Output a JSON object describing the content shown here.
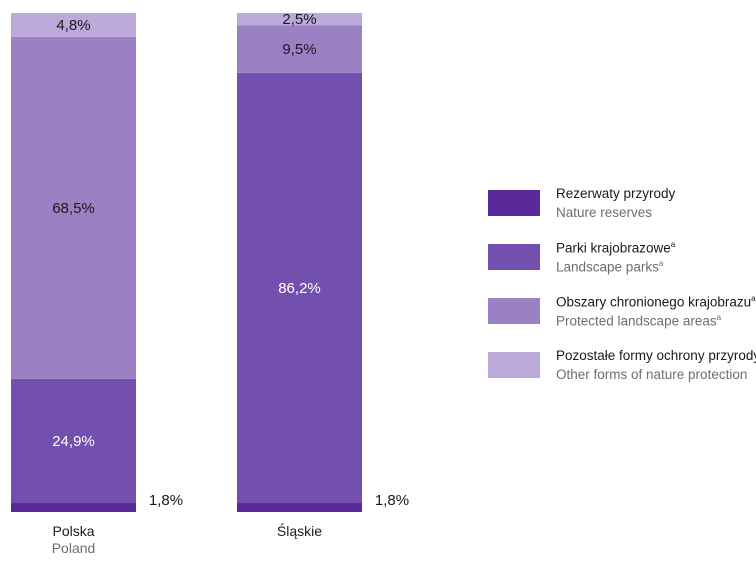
{
  "chart_data": {
    "type": "bar",
    "stacked": true,
    "percent": true,
    "categories": [
      {
        "label": "Polska",
        "label_en": "Poland"
      },
      {
        "label": "Śląskie",
        "label_en": ""
      }
    ],
    "series": [
      {
        "name": "Rezerwaty przyrody",
        "name_en": "Nature reserves",
        "sup": "",
        "color": "#5a2a9a",
        "values": [
          1.8,
          1.8
        ],
        "labels": [
          "1,8%",
          "1,8%"
        ]
      },
      {
        "name": "Parki krajobrazowe",
        "name_en": "Landscape parks",
        "sup": "a",
        "color": "#7350ad",
        "values": [
          24.9,
          86.2
        ],
        "labels": [
          "24,9%",
          "86,2%"
        ]
      },
      {
        "name": "Obszary chronionego krajobrazu",
        "name_en": "Protected landscape areas",
        "sup": "a",
        "color": "#9b80c4",
        "values": [
          68.5,
          9.5
        ],
        "labels": [
          "68,5%",
          "9,5%"
        ]
      },
      {
        "name": "Pozostałe formy ochrony przyrody",
        "name_en": "Other forms of nature protection",
        "sup": "",
        "color": "#bba9d9",
        "values": [
          4.8,
          2.5
        ],
        "labels": [
          "4,8%",
          "2,5%"
        ]
      }
    ],
    "ylim": [
      0,
      100
    ],
    "legend_position": "right",
    "grid": false
  }
}
